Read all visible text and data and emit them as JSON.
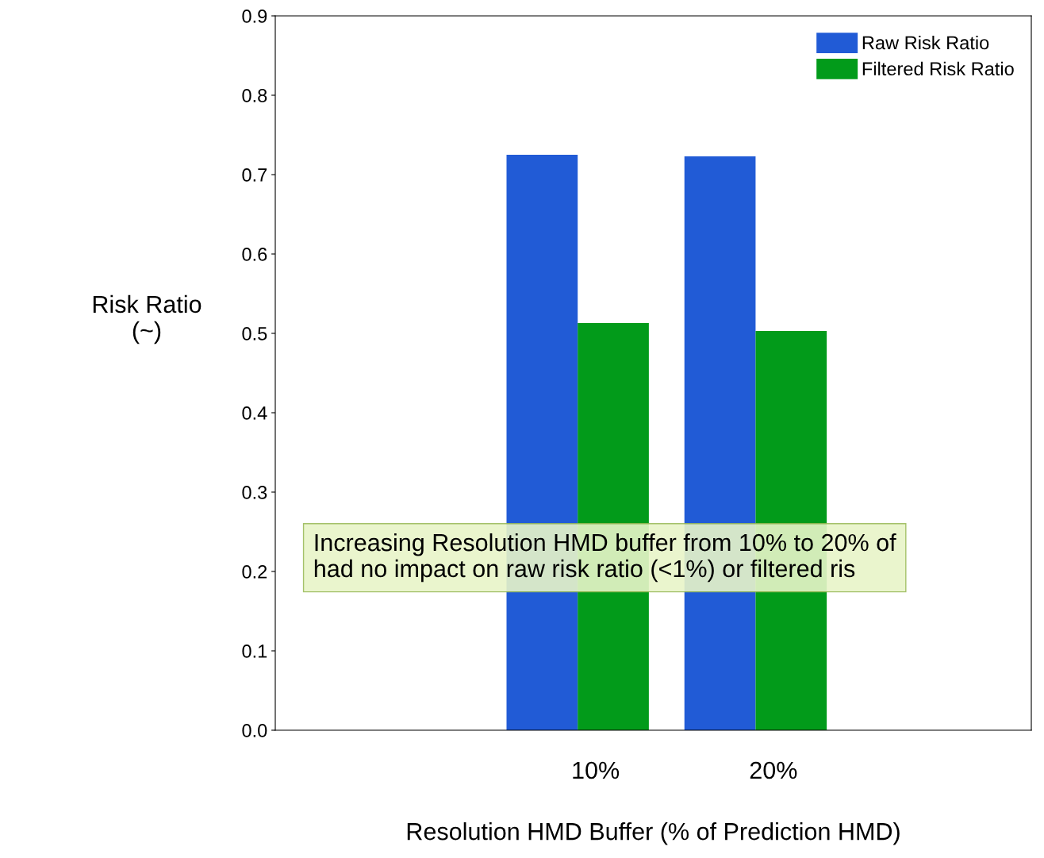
{
  "chart_data": {
    "type": "bar",
    "xlabel": "Resolution HMD Buffer (% of Prediction HMD)",
    "ylabel": "Risk Ratio\n(~)",
    "categories": [
      "10%",
      "20%"
    ],
    "series": [
      {
        "name": "Raw Risk Ratio",
        "color": "#215bd6",
        "values": [
          0.725,
          0.723
        ]
      },
      {
        "name": "Filtered Risk Ratio",
        "color": "#029b1a",
        "values": [
          0.513,
          0.503
        ]
      }
    ],
    "ylim": [
      0,
      0.9
    ],
    "yticks": [
      {
        "value": 0,
        "label": "0.0"
      },
      0.1,
      0.2,
      0.3,
      0.4,
      0.5,
      0.6,
      0.7,
      0.8,
      0.9
    ],
    "grid": false,
    "legend": "top right",
    "annotations": [
      "Increasing Resolution HMD buffer from 10% to 20% of\nhad no impact on raw risk ratio (<1%) or filtered ris"
    ]
  }
}
